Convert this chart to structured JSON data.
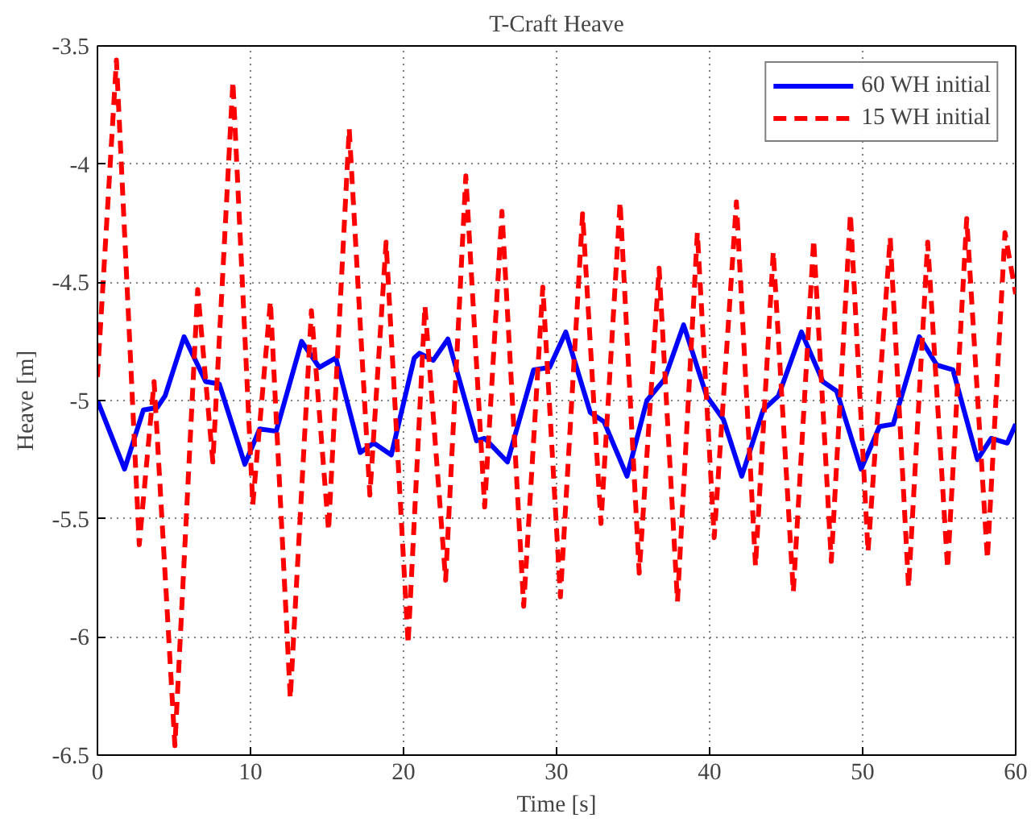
{
  "chart_data": {
    "type": "line",
    "title": "T-Craft Heave",
    "xlabel": "Time [s]",
    "ylabel": "Heave [m]",
    "xlim": [
      0,
      60
    ],
    "ylim": [
      -6.5,
      -3.5
    ],
    "xticks": [
      0,
      10,
      20,
      30,
      40,
      50,
      60
    ],
    "yticks": [
      -6.5,
      -6,
      -5.5,
      -5,
      -4.5,
      -4,
      -3.5
    ],
    "grid": true,
    "legend": "top right",
    "series": [
      {
        "name": "60 WH initial",
        "color": "#0000ff",
        "line_style": "solid",
        "x": [
          0,
          1.77,
          3.0,
          3.9,
          4.42,
          5.66,
          7.07,
          7.96,
          9.63,
          10.6,
          11.68,
          13.34,
          14.5,
          15.58,
          17.17,
          18.05,
          19.2,
          20.7,
          21.05,
          21.94,
          22.9,
          24.77,
          25.3,
          26.79,
          28.5,
          29.54,
          30.6,
          32.2,
          33.1,
          34.6,
          35.9,
          37.05,
          38.3,
          39.8,
          40.9,
          42.1,
          43.5,
          44.5,
          46.0,
          47.4,
          48.3,
          49.9,
          51.1,
          52.0,
          53.7,
          54.85,
          55.9,
          57.5,
          58.4,
          59.45,
          60
        ],
        "values": [
          -5.0,
          -5.29,
          -5.04,
          -5.03,
          -4.98,
          -4.73,
          -4.92,
          -4.93,
          -5.27,
          -5.12,
          -5.13,
          -4.75,
          -4.86,
          -4.82,
          -5.22,
          -5.18,
          -5.23,
          -4.82,
          -4.8,
          -4.83,
          -4.74,
          -5.17,
          -5.16,
          -5.26,
          -4.87,
          -4.86,
          -4.71,
          -5.05,
          -5.09,
          -5.32,
          -5.0,
          -4.91,
          -4.68,
          -4.98,
          -5.08,
          -5.32,
          -5.04,
          -4.98,
          -4.71,
          -4.92,
          -4.96,
          -5.29,
          -5.11,
          -5.1,
          -4.73,
          -4.85,
          -4.87,
          -5.25,
          -5.16,
          -5.18,
          -5.1
        ]
      },
      {
        "name": "15 WH initial",
        "color": "#ff0000",
        "line_style": "dashed",
        "x": [
          0,
          1.24,
          2.73,
          3.7,
          5.06,
          6.55,
          7.54,
          8.85,
          10.15,
          11.3,
          12.6,
          13.98,
          15.1,
          16.45,
          17.8,
          18.86,
          20.3,
          21.4,
          22.75,
          24.07,
          25.3,
          26.43,
          27.85,
          29.1,
          30.25,
          31.7,
          32.9,
          34.15,
          35.4,
          36.7,
          37.9,
          39.2,
          40.3,
          41.75,
          43.0,
          44.16,
          45.47,
          46.8,
          47.95,
          49.2,
          50.35,
          51.8,
          53.0,
          54.25,
          55.55,
          56.8,
          58.15,
          59.3,
          60
        ],
        "values": [
          -4.9,
          -3.56,
          -5.61,
          -4.92,
          -6.46,
          -4.53,
          -5.26,
          -3.65,
          -5.44,
          -4.58,
          -6.26,
          -4.62,
          -5.55,
          -3.85,
          -5.4,
          -4.33,
          -6.03,
          -4.6,
          -5.76,
          -4.05,
          -5.45,
          -4.2,
          -5.87,
          -4.52,
          -5.83,
          -4.21,
          -5.52,
          -4.16,
          -5.73,
          -4.44,
          -5.85,
          -4.29,
          -5.58,
          -4.16,
          -5.7,
          -4.37,
          -5.81,
          -4.32,
          -5.68,
          -4.21,
          -5.64,
          -4.31,
          -5.79,
          -4.33,
          -5.71,
          -4.23,
          -5.67,
          -4.29,
          -4.55
        ]
      }
    ]
  }
}
